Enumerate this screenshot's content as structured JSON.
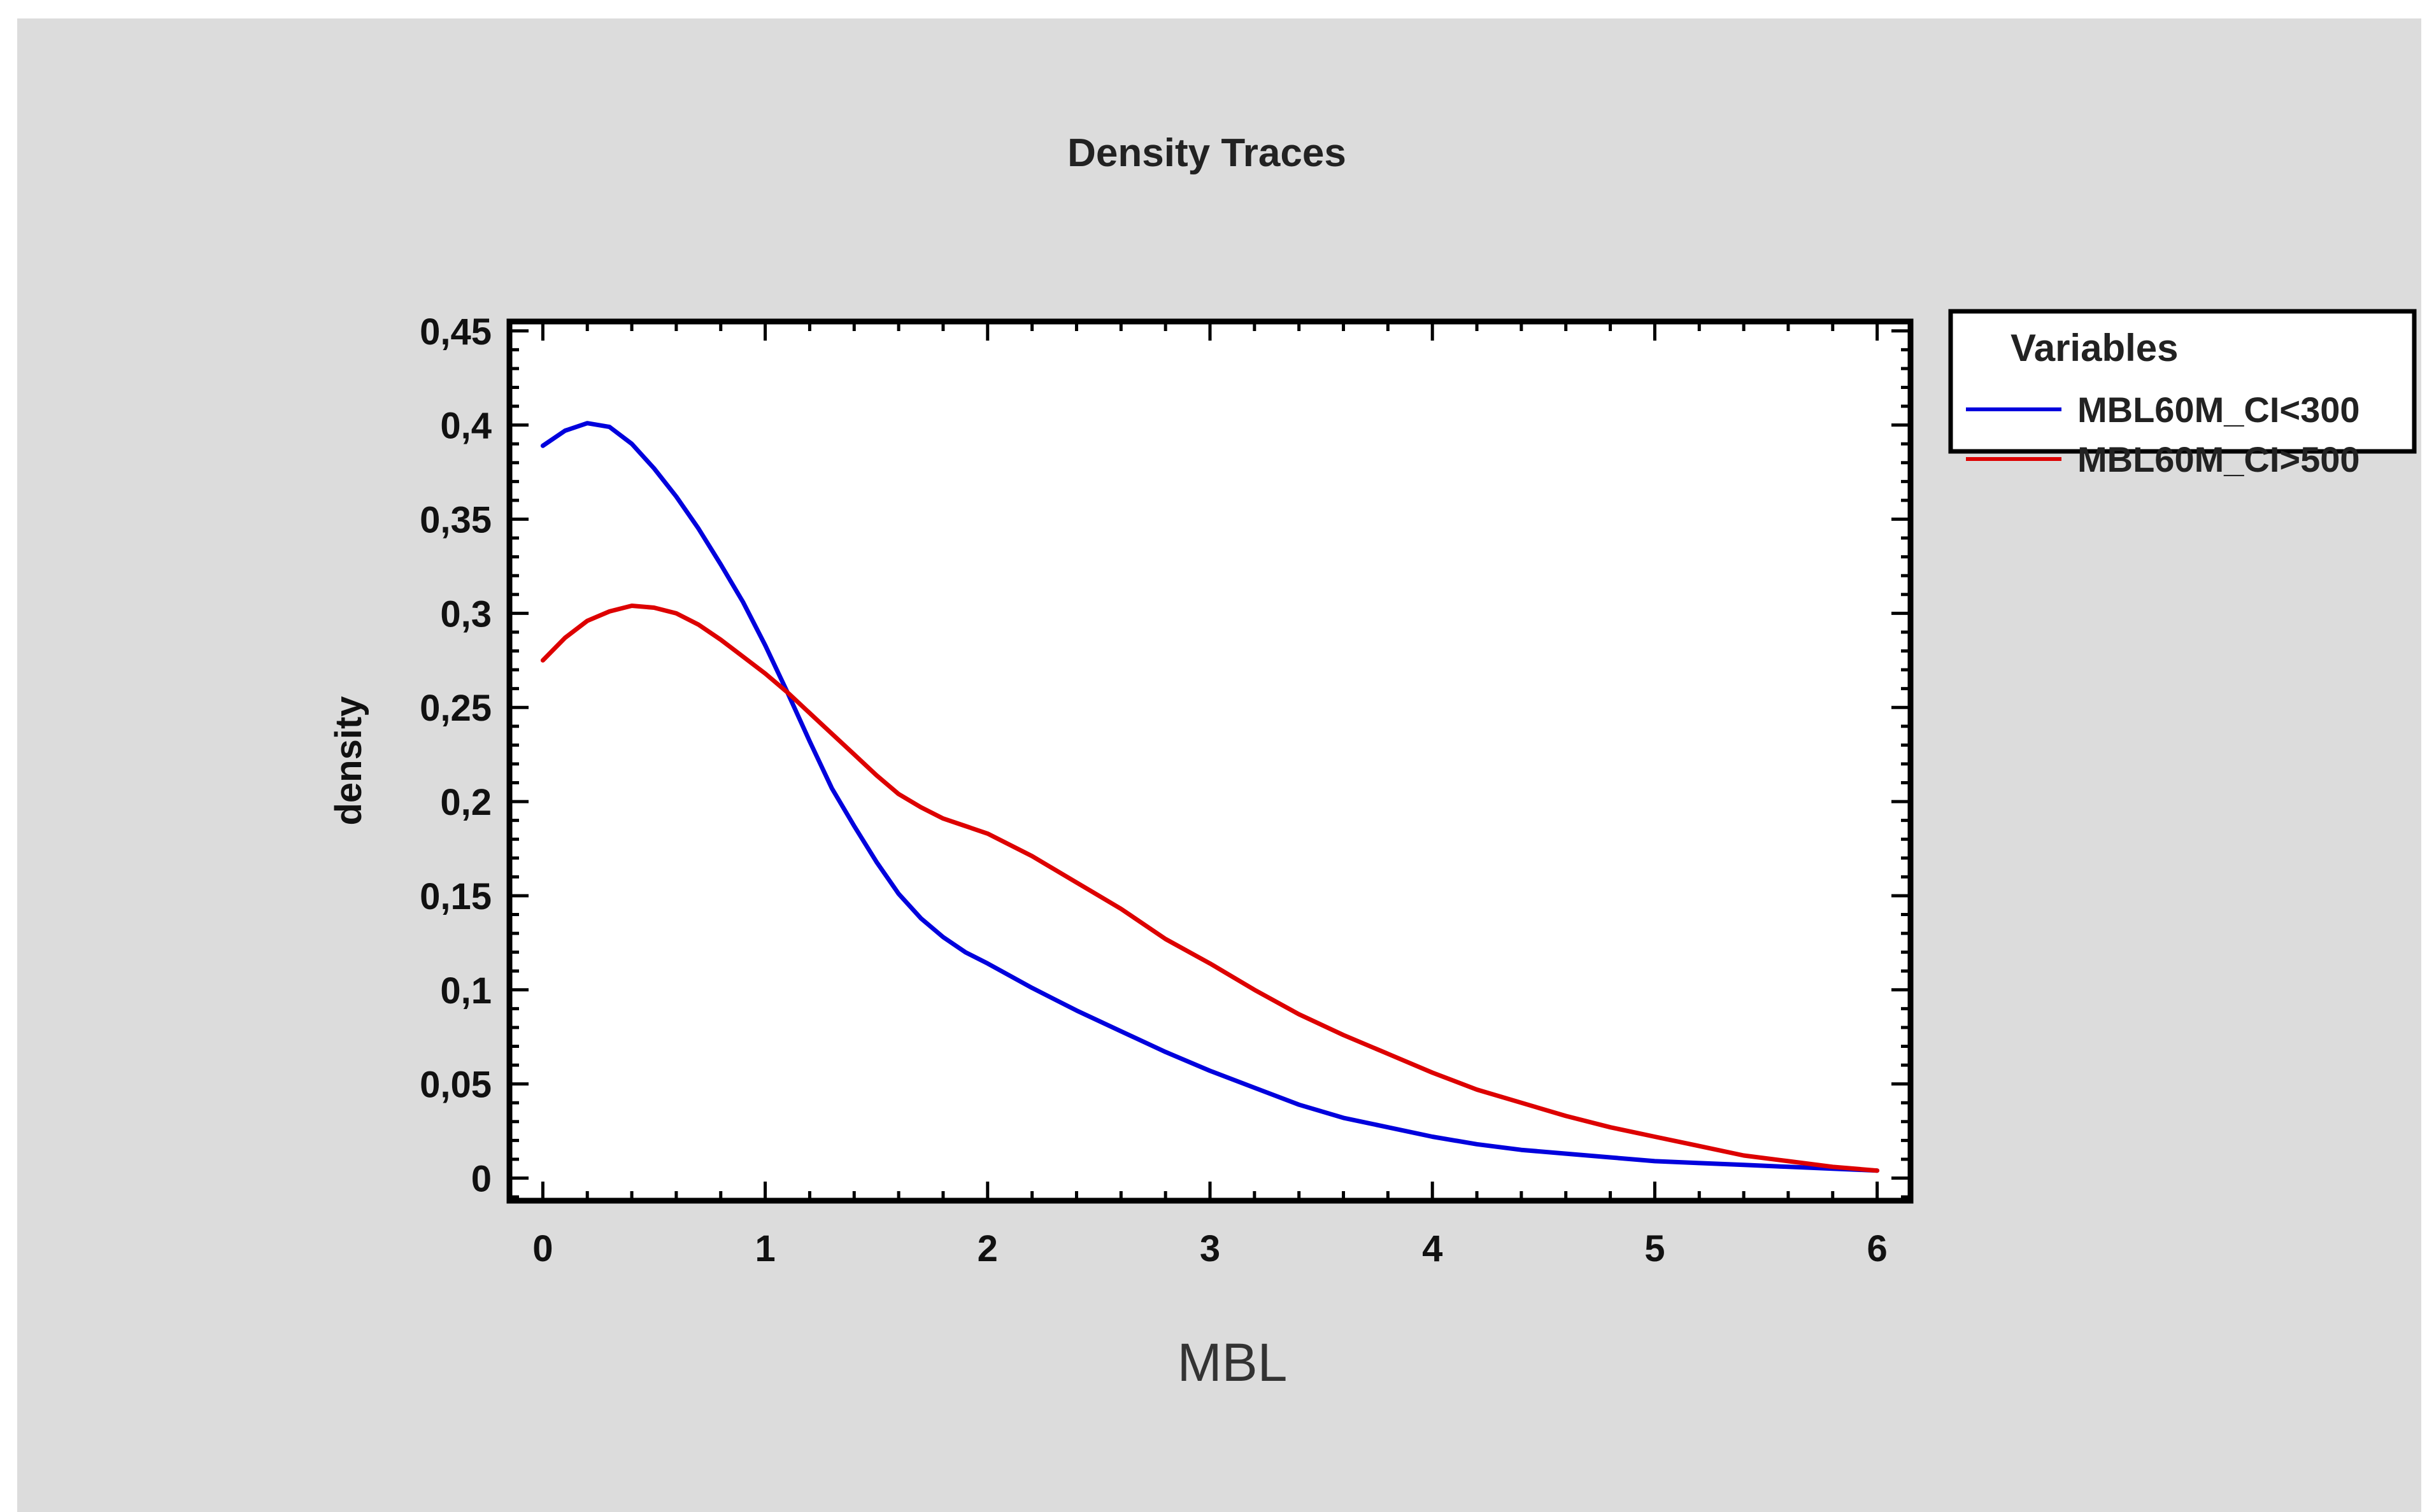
{
  "chart_data": {
    "type": "line",
    "title": "Density Traces",
    "xlabel": "MBL",
    "ylabel": "density",
    "xlim": [
      -0.15,
      6.15
    ],
    "ylim": [
      -0.012,
      0.455
    ],
    "x_ticks": [
      0,
      1,
      2,
      3,
      4,
      5,
      6
    ],
    "x_tick_labels": [
      "0",
      "1",
      "2",
      "3",
      "4",
      "5",
      "6"
    ],
    "y_ticks": [
      0,
      0.05,
      0.1,
      0.15,
      0.2,
      0.25,
      0.3,
      0.35,
      0.4,
      0.45
    ],
    "y_tick_labels": [
      "0",
      "0,05",
      "0,1",
      "0,15",
      "0,2",
      "0,25",
      "0,3",
      "0,35",
      "0,4",
      "0,45"
    ],
    "grid": false,
    "legend": {
      "title": "Variables",
      "position": "outside-right"
    },
    "series": [
      {
        "name": "MBL60M_CI<300",
        "color": "#0000dd",
        "x": [
          0,
          0.1,
          0.2,
          0.3,
          0.4,
          0.5,
          0.6,
          0.7,
          0.8,
          0.9,
          1.0,
          1.1,
          1.2,
          1.3,
          1.4,
          1.5,
          1.6,
          1.7,
          1.8,
          1.9,
          2.0,
          2.2,
          2.4,
          2.6,
          2.8,
          3.0,
          3.2,
          3.4,
          3.6,
          3.8,
          4.0,
          4.2,
          4.4,
          4.6,
          4.8,
          5.0,
          5.2,
          5.4,
          5.6,
          5.8,
          6.0
        ],
        "y": [
          0.389,
          0.397,
          0.401,
          0.399,
          0.39,
          0.377,
          0.362,
          0.345,
          0.326,
          0.306,
          0.283,
          0.258,
          0.232,
          0.207,
          0.187,
          0.168,
          0.151,
          0.138,
          0.128,
          0.12,
          0.114,
          0.101,
          0.089,
          0.078,
          0.067,
          0.057,
          0.048,
          0.039,
          0.032,
          0.027,
          0.022,
          0.018,
          0.015,
          0.013,
          0.011,
          0.009,
          0.008,
          0.007,
          0.006,
          0.005,
          0.004
        ]
      },
      {
        "name": "MBL60M_CI>500",
        "color": "#dd0000",
        "x": [
          0,
          0.1,
          0.2,
          0.3,
          0.4,
          0.5,
          0.6,
          0.7,
          0.8,
          0.9,
          1.0,
          1.1,
          1.2,
          1.3,
          1.4,
          1.5,
          1.6,
          1.7,
          1.8,
          1.9,
          2.0,
          2.2,
          2.4,
          2.6,
          2.8,
          3.0,
          3.2,
          3.4,
          3.6,
          3.8,
          4.0,
          4.2,
          4.4,
          4.6,
          4.8,
          5.0,
          5.2,
          5.4,
          5.6,
          5.8,
          6.0
        ],
        "y": [
          0.275,
          0.287,
          0.296,
          0.301,
          0.304,
          0.303,
          0.3,
          0.294,
          0.286,
          0.277,
          0.268,
          0.258,
          0.247,
          0.236,
          0.225,
          0.214,
          0.204,
          0.197,
          0.191,
          0.187,
          0.183,
          0.171,
          0.157,
          0.143,
          0.127,
          0.114,
          0.1,
          0.087,
          0.076,
          0.066,
          0.056,
          0.047,
          0.04,
          0.033,
          0.027,
          0.022,
          0.017,
          0.012,
          0.009,
          0.006,
          0.004
        ]
      }
    ]
  }
}
